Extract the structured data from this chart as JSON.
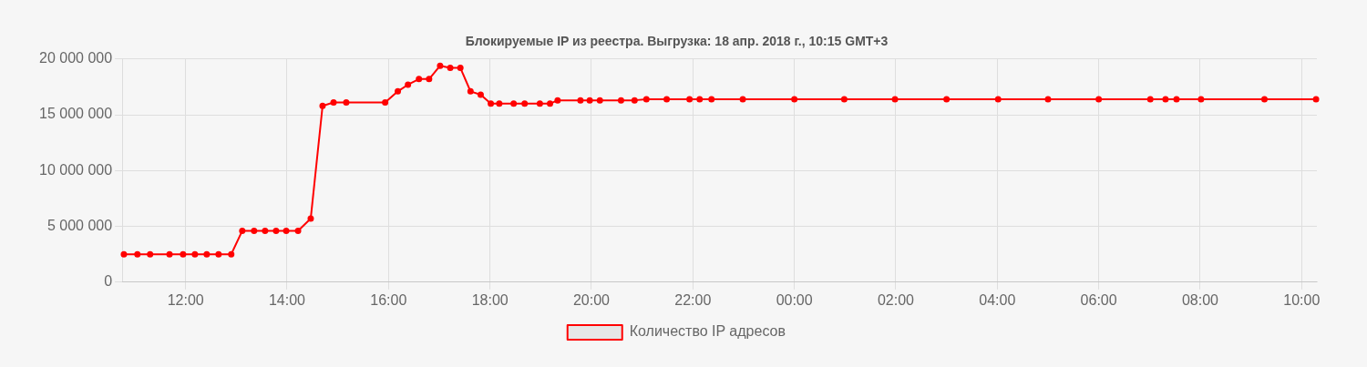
{
  "chart_data": {
    "type": "line",
    "title": "Блокируемые IP из реестра. Выгрузка: 18 апр. 2018 г., 10:15 GMT+3",
    "x": [
      "2018-04-17T10:47",
      "2018-04-17T11:03",
      "2018-04-17T11:18",
      "2018-04-17T11:41",
      "2018-04-17T11:57",
      "2018-04-17T12:11",
      "2018-04-17T12:25",
      "2018-04-17T12:39",
      "2018-04-17T12:54",
      "2018-04-17T13:07",
      "2018-04-17T13:21",
      "2018-04-17T13:34",
      "2018-04-17T13:47",
      "2018-04-17T13:59",
      "2018-04-17T14:13",
      "2018-04-17T14:28",
      "2018-04-17T14:42",
      "2018-04-17T14:55",
      "2018-04-17T15:10",
      "2018-04-17T15:56",
      "2018-04-17T16:11",
      "2018-04-17T16:23",
      "2018-04-17T16:36",
      "2018-04-17T16:48",
      "2018-04-17T17:01",
      "2018-04-17T17:13",
      "2018-04-17T17:25",
      "2018-04-17T17:37",
      "2018-04-17T17:49",
      "2018-04-17T18:01",
      "2018-04-17T18:11",
      "2018-04-17T18:28",
      "2018-04-17T18:41",
      "2018-04-17T18:59",
      "2018-04-17T19:11",
      "2018-04-17T19:20",
      "2018-04-17T19:47",
      "2018-04-17T19:58",
      "2018-04-17T20:10",
      "2018-04-17T20:35",
      "2018-04-17T20:51",
      "2018-04-17T21:05",
      "2018-04-17T21:29",
      "2018-04-17T21:56",
      "2018-04-17T22:08",
      "2018-04-17T22:22",
      "2018-04-17T22:59",
      "2018-04-18T00:00",
      "2018-04-18T00:59",
      "2018-04-18T01:59",
      "2018-04-18T03:00",
      "2018-04-18T04:01",
      "2018-04-18T05:00",
      "2018-04-18T06:00",
      "2018-04-18T07:01",
      "2018-04-18T07:19",
      "2018-04-18T07:32",
      "2018-04-18T08:01",
      "2018-04-18T09:16",
      "2018-04-18T10:17"
    ],
    "series": [
      {
        "name": "Количество IP адресов",
        "color": "#ff0000",
        "values": [
          2500000,
          2500000,
          2500000,
          2500000,
          2500000,
          2500000,
          2500000,
          2500000,
          2500000,
          4600000,
          4600000,
          4600000,
          4600000,
          4600000,
          4600000,
          5700000,
          15800000,
          16100000,
          16100000,
          16100000,
          17100000,
          17700000,
          18200000,
          18200000,
          19400000,
          19200000,
          19200000,
          17100000,
          16800000,
          16000000,
          16000000,
          16000000,
          16000000,
          16000000,
          16000000,
          16300000,
          16300000,
          16300000,
          16300000,
          16300000,
          16300000,
          16400000,
          16400000,
          16400000,
          16400000,
          16400000,
          16400000,
          16400000,
          16400000,
          16400000,
          16400000,
          16400000,
          16400000,
          16400000,
          16400000,
          16400000,
          16400000,
          16400000,
          16400000,
          16400000
        ]
      }
    ],
    "xlim": [
      "2018-04-17T10:45",
      "2018-04-18T10:18"
    ],
    "xticks": [
      {
        "value": "2018-04-17T12:00",
        "label": "12:00"
      },
      {
        "value": "2018-04-17T14:00",
        "label": "14:00"
      },
      {
        "value": "2018-04-17T16:00",
        "label": "16:00"
      },
      {
        "value": "2018-04-17T18:00",
        "label": "18:00"
      },
      {
        "value": "2018-04-17T20:00",
        "label": "20:00"
      },
      {
        "value": "2018-04-17T22:00",
        "label": "22:00"
      },
      {
        "value": "2018-04-18T00:00",
        "label": "00:00"
      },
      {
        "value": "2018-04-18T02:00",
        "label": "02:00"
      },
      {
        "value": "2018-04-18T04:00",
        "label": "04:00"
      },
      {
        "value": "2018-04-18T06:00",
        "label": "06:00"
      },
      {
        "value": "2018-04-18T08:00",
        "label": "08:00"
      },
      {
        "value": "2018-04-18T10:00",
        "label": "10:00"
      }
    ],
    "ylim": [
      0,
      20000000
    ],
    "yticks": [
      0,
      {
        "value": 5000000,
        "label": "5 000 000"
      },
      {
        "value": 10000000,
        "label": "10 000 000"
      },
      {
        "value": 15000000,
        "label": "15 000 000"
      },
      {
        "value": 20000000,
        "label": "20 000 000"
      }
    ],
    "grid": true,
    "legend": "bottom",
    "marker": "circle",
    "line_style": "solid"
  }
}
